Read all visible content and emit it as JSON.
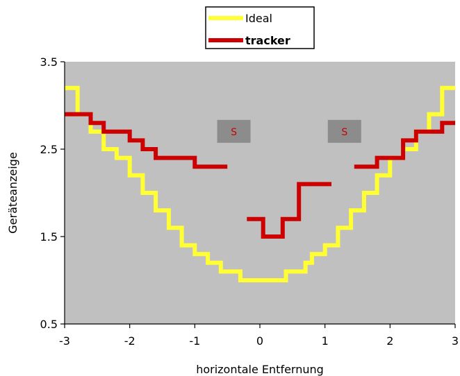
{
  "chart_data": {
    "type": "line",
    "step": true,
    "xlabel": "horizontale Entfernung",
    "ylabel": "Geräteanzeige",
    "xlim": [
      -3,
      3
    ],
    "ylim": [
      0.5,
      3.5
    ],
    "xticks": [
      "-3",
      "-2",
      "-1",
      "0",
      "1",
      "2",
      "3"
    ],
    "yticks": [
      "0.5",
      "1.5",
      "2.5",
      "3.5"
    ],
    "grid": false,
    "legend_position": "top-center",
    "plot_background": "#c0c0c0",
    "series": [
      {
        "name": "Ideal",
        "color": "#ffff33",
        "segments": [
          [
            [
              -3,
              3.2
            ],
            [
              -2.8,
              3.2
            ],
            [
              -2.8,
              2.9
            ],
            [
              -2.6,
              2.9
            ],
            [
              -2.6,
              2.7
            ],
            [
              -2.4,
              2.7
            ],
            [
              -2.4,
              2.5
            ],
            [
              -2.2,
              2.5
            ],
            [
              -2.2,
              2.4
            ],
            [
              -2.0,
              2.4
            ],
            [
              -2.0,
              2.2
            ],
            [
              -1.8,
              2.2
            ],
            [
              -1.8,
              2.0
            ],
            [
              -1.6,
              2.0
            ],
            [
              -1.6,
              1.8
            ],
            [
              -1.4,
              1.8
            ],
            [
              -1.4,
              1.6
            ],
            [
              -1.2,
              1.6
            ],
            [
              -1.2,
              1.4
            ],
            [
              -1.0,
              1.4
            ],
            [
              -1.0,
              1.3
            ],
            [
              -0.8,
              1.3
            ],
            [
              -0.8,
              1.2
            ],
            [
              -0.6,
              1.2
            ],
            [
              -0.6,
              1.1
            ],
            [
              -0.3,
              1.1
            ],
            [
              -0.3,
              1.0
            ],
            [
              0.4,
              1.0
            ],
            [
              0.4,
              1.1
            ],
            [
              0.7,
              1.1
            ],
            [
              0.7,
              1.2
            ],
            [
              0.8,
              1.2
            ],
            [
              0.8,
              1.3
            ],
            [
              1.0,
              1.3
            ],
            [
              1.0,
              1.4
            ],
            [
              1.2,
              1.4
            ],
            [
              1.2,
              1.6
            ],
            [
              1.4,
              1.6
            ],
            [
              1.4,
              1.8
            ],
            [
              1.6,
              1.8
            ],
            [
              1.6,
              2.0
            ],
            [
              1.8,
              2.0
            ],
            [
              1.8,
              2.2
            ],
            [
              2.0,
              2.2
            ],
            [
              2.0,
              2.4
            ],
            [
              2.2,
              2.4
            ],
            [
              2.2,
              2.5
            ],
            [
              2.4,
              2.5
            ],
            [
              2.4,
              2.7
            ],
            [
              2.6,
              2.7
            ],
            [
              2.6,
              2.9
            ],
            [
              2.8,
              2.9
            ],
            [
              2.8,
              3.2
            ],
            [
              3.0,
              3.2
            ]
          ]
        ]
      },
      {
        "name": "tracker",
        "color": "#cc0000",
        "segments": [
          [
            [
              -3,
              2.9
            ],
            [
              -2.6,
              2.9
            ],
            [
              -2.6,
              2.8
            ],
            [
              -2.4,
              2.8
            ],
            [
              -2.4,
              2.7
            ],
            [
              -2.0,
              2.7
            ],
            [
              -2.0,
              2.6
            ],
            [
              -1.8,
              2.6
            ],
            [
              -1.8,
              2.5
            ],
            [
              -1.6,
              2.5
            ],
            [
              -1.6,
              2.4
            ],
            [
              -1.0,
              2.4
            ],
            [
              -1.0,
              2.3
            ],
            [
              -0.5,
              2.3
            ]
          ],
          [
            [
              -0.2,
              1.7
            ],
            [
              0.05,
              1.7
            ],
            [
              0.05,
              1.5
            ],
            [
              0.35,
              1.5
            ],
            [
              0.35,
              1.7
            ],
            [
              0.6,
              1.7
            ],
            [
              0.6,
              2.1
            ],
            [
              1.1,
              2.1
            ]
          ],
          [
            [
              1.45,
              2.3
            ],
            [
              1.8,
              2.3
            ],
            [
              1.8,
              2.4
            ],
            [
              2.2,
              2.4
            ],
            [
              2.2,
              2.6
            ],
            [
              2.4,
              2.6
            ],
            [
              2.4,
              2.7
            ],
            [
              2.8,
              2.7
            ],
            [
              2.8,
              2.8
            ],
            [
              3.0,
              2.8
            ]
          ]
        ]
      }
    ],
    "annotations": [
      {
        "text": "S",
        "x": -0.4,
        "y": 2.7
      },
      {
        "text": "S",
        "x": 1.3,
        "y": 2.7
      }
    ]
  }
}
